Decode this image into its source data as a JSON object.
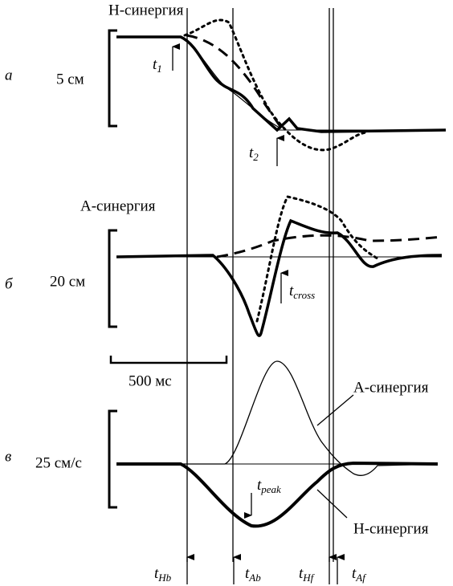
{
  "panels": [
    {
      "letter": "а",
      "title": "H-синергия",
      "scale": "5 см",
      "markers": [
        {
          "base": "t",
          "sub": "1"
        },
        {
          "base": "t",
          "sub": "2"
        }
      ]
    },
    {
      "letter": "б",
      "title": "A-синергия",
      "scale": "20 см",
      "markers": [
        {
          "base": "t",
          "sub": "cross"
        }
      ]
    },
    {
      "letter": "в",
      "scale": "25 см/с",
      "markers": [
        {
          "base": "t",
          "sub": "peak"
        }
      ],
      "curve_labels": [
        "A-синергия",
        "H-синергия"
      ]
    }
  ],
  "time_scale": "500 мс",
  "events": [
    {
      "base": "t",
      "sub": "Hb"
    },
    {
      "base": "t",
      "sub": "Ab"
    },
    {
      "base": "t",
      "sub": "Hf"
    },
    {
      "base": "t",
      "sub": "Af"
    }
  ]
}
